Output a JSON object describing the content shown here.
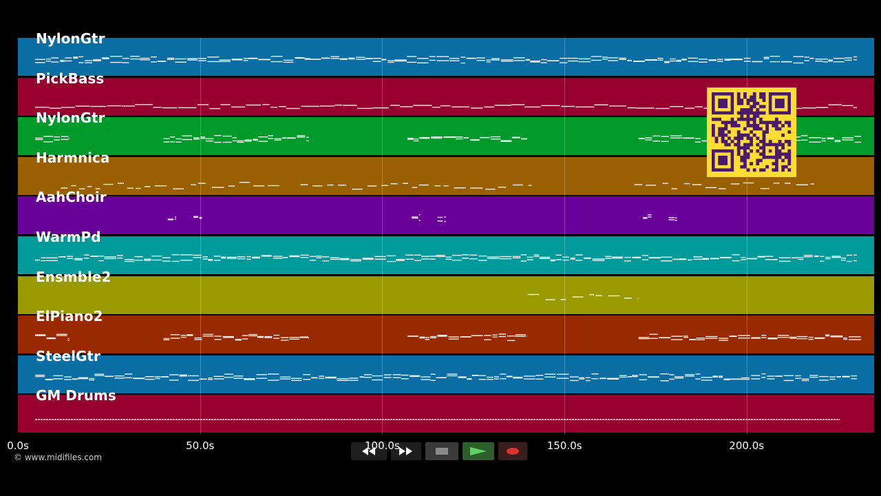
{
  "tracks": [
    {
      "name": "NylonGtr",
      "color": "#0a6da4"
    },
    {
      "name": "PickBass",
      "color": "#97002e"
    },
    {
      "name": "NylonGtr",
      "color": "#009a2a"
    },
    {
      "name": "Harmnica",
      "color": "#9a6000"
    },
    {
      "name": "AahChoir",
      "color": "#6a0099"
    },
    {
      "name": "WarmPd",
      "color": "#009a9a"
    },
    {
      "name": "Ensmble2",
      "color": "#999900"
    },
    {
      "name": "ElPiano2",
      "color": "#992900"
    },
    {
      "name": "SteelGtr",
      "color": "#0a6da4"
    },
    {
      "name": "GM Drums",
      "color": "#97002e"
    }
  ],
  "timeline": {
    "max_seconds": 235,
    "ticks": [
      {
        "value": 0,
        "label": "0.0s"
      },
      {
        "value": 50,
        "label": "50.0s"
      },
      {
        "value": 100,
        "label": "100.0s"
      },
      {
        "value": 150,
        "label": "150.0s"
      },
      {
        "value": 200,
        "label": "200.0s"
      }
    ]
  },
  "copyright": "© www.midifiles.com",
  "transport": {
    "rewind_icon": "rewind-icon",
    "forward_icon": "fast-forward-icon",
    "stop_icon": "stop-icon",
    "play_icon": "play-icon",
    "record_icon": "record-icon"
  },
  "qr_code_icon": "qr-code-icon"
}
